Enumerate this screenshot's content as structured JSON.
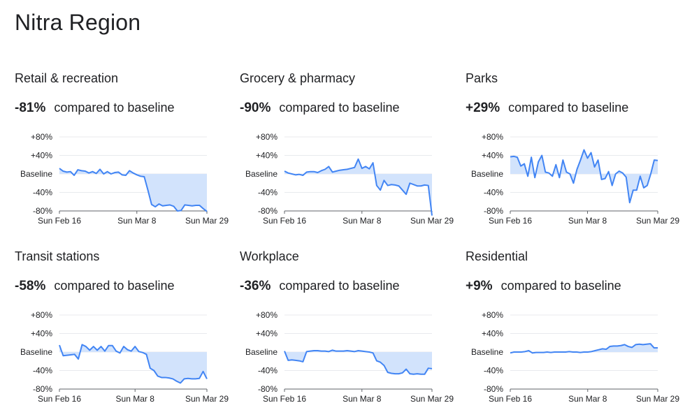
{
  "title": "Nitra Region",
  "colors": {
    "line": "#4285f4",
    "fill": "#d2e3fc",
    "grid": "#e8eaed",
    "axis": "#5f6368"
  },
  "chart_data": [
    {
      "type": "line",
      "title": "Retail & recreation",
      "change": "-81%",
      "change_label": "compared to baseline",
      "yticks": [
        "+80%",
        "+40%",
        "Baseline",
        "-40%",
        "-80%"
      ],
      "ylim": [
        -80,
        80
      ],
      "xticks": [
        "Sun Feb 16",
        "Sun Mar 8",
        "Sun Mar 29"
      ],
      "values": [
        12,
        6,
        4,
        5,
        -3,
        9,
        7,
        6,
        2,
        5,
        1,
        10,
        0,
        5,
        0,
        3,
        4,
        -2,
        -3,
        7,
        2,
        -2,
        -5,
        -6,
        -35,
        -66,
        -71,
        -65,
        -69,
        -68,
        -67,
        -70,
        -80,
        -79,
        -67,
        -68,
        -69,
        -68,
        -68,
        -75,
        -81
      ]
    },
    {
      "type": "line",
      "title": "Grocery & pharmacy",
      "change": "-90%",
      "change_label": "compared to baseline",
      "yticks": [
        "+80%",
        "+40%",
        "Baseline",
        "-40%",
        "-80%"
      ],
      "ylim": [
        -80,
        80
      ],
      "xticks": [
        "Sun Feb 16",
        "Sun Mar 8",
        "Sun Mar 29"
      ],
      "values": [
        6,
        2,
        0,
        -2,
        -1,
        -3,
        4,
        5,
        5,
        3,
        7,
        10,
        16,
        4,
        6,
        8,
        9,
        10,
        12,
        14,
        32,
        12,
        16,
        11,
        24,
        -25,
        -35,
        -14,
        -25,
        -23,
        -24,
        -26,
        -35,
        -44,
        -20,
        -23,
        -26,
        -26,
        -24,
        -25,
        -90
      ]
    },
    {
      "type": "line",
      "title": "Parks",
      "change": "+29%",
      "change_label": "compared to baseline",
      "yticks": [
        "+80%",
        "+40%",
        "Baseline",
        "-40%",
        "-80%"
      ],
      "ylim": [
        -80,
        80
      ],
      "xticks": [
        "Sun Feb 16",
        "Sun Mar 8",
        "Sun Mar 29"
      ],
      "values": [
        37,
        38,
        36,
        17,
        22,
        -5,
        36,
        -8,
        26,
        40,
        4,
        2,
        -5,
        20,
        -8,
        30,
        4,
        0,
        -20,
        10,
        30,
        52,
        34,
        46,
        15,
        30,
        -12,
        -10,
        5,
        -25,
        0,
        6,
        2,
        -7,
        -62,
        -35,
        -35,
        -5,
        -30,
        -25,
        0,
        30,
        29
      ]
    },
    {
      "type": "line",
      "title": "Transit stations",
      "change": "-58%",
      "change_label": "compared to baseline",
      "yticks": [
        "+80%",
        "+40%",
        "Baseline",
        "-40%",
        "-80%"
      ],
      "ylim": [
        -80,
        80
      ],
      "xticks": [
        "Sun Feb 16",
        "Sun Mar 8",
        "Sun Mar 29"
      ],
      "values": [
        15,
        -8,
        -7,
        -6,
        -5,
        -15,
        16,
        12,
        4,
        12,
        4,
        12,
        2,
        14,
        14,
        2,
        -2,
        12,
        5,
        2,
        12,
        1,
        -1,
        -5,
        -35,
        -40,
        -52,
        -55,
        -55,
        -56,
        -58,
        -63,
        -67,
        -58,
        -57,
        -58,
        -58,
        -57,
        -42,
        -58
      ]
    },
    {
      "type": "line",
      "title": "Workplace",
      "change": "-36%",
      "change_label": "compared to baseline",
      "yticks": [
        "+80%",
        "+40%",
        "Baseline",
        "-40%",
        "-80%"
      ],
      "ylim": [
        -80,
        80
      ],
      "xticks": [
        "Sun Feb 16",
        "Sun Mar 8",
        "Sun Mar 29"
      ],
      "values": [
        2,
        -18,
        -17,
        -18,
        -19,
        -21,
        1,
        2,
        3,
        3,
        2,
        2,
        1,
        4,
        2,
        2,
        2,
        3,
        2,
        1,
        3,
        2,
        1,
        0,
        -2,
        -19,
        -22,
        -29,
        -44,
        -46,
        -47,
        -47,
        -45,
        -37,
        -47,
        -48,
        -47,
        -48,
        -48,
        -35,
        -36
      ]
    },
    {
      "type": "line",
      "title": "Residential",
      "change": "+9%",
      "change_label": "compared to baseline",
      "yticks": [
        "+80%",
        "+40%",
        "Baseline",
        "-40%",
        "-80%"
      ],
      "ylim": [
        -80,
        80
      ],
      "xticks": [
        "Sun Feb 16",
        "Sun Mar 8",
        "Sun Mar 29"
      ],
      "values": [
        -2,
        0,
        0,
        0,
        1,
        3,
        -2,
        -1,
        -1,
        -1,
        0,
        -1,
        0,
        0,
        0,
        0,
        1,
        0,
        0,
        -1,
        0,
        0,
        1,
        3,
        5,
        7,
        6,
        12,
        13,
        13,
        14,
        16,
        12,
        10,
        16,
        17,
        16,
        17,
        18,
        9,
        9
      ]
    }
  ]
}
